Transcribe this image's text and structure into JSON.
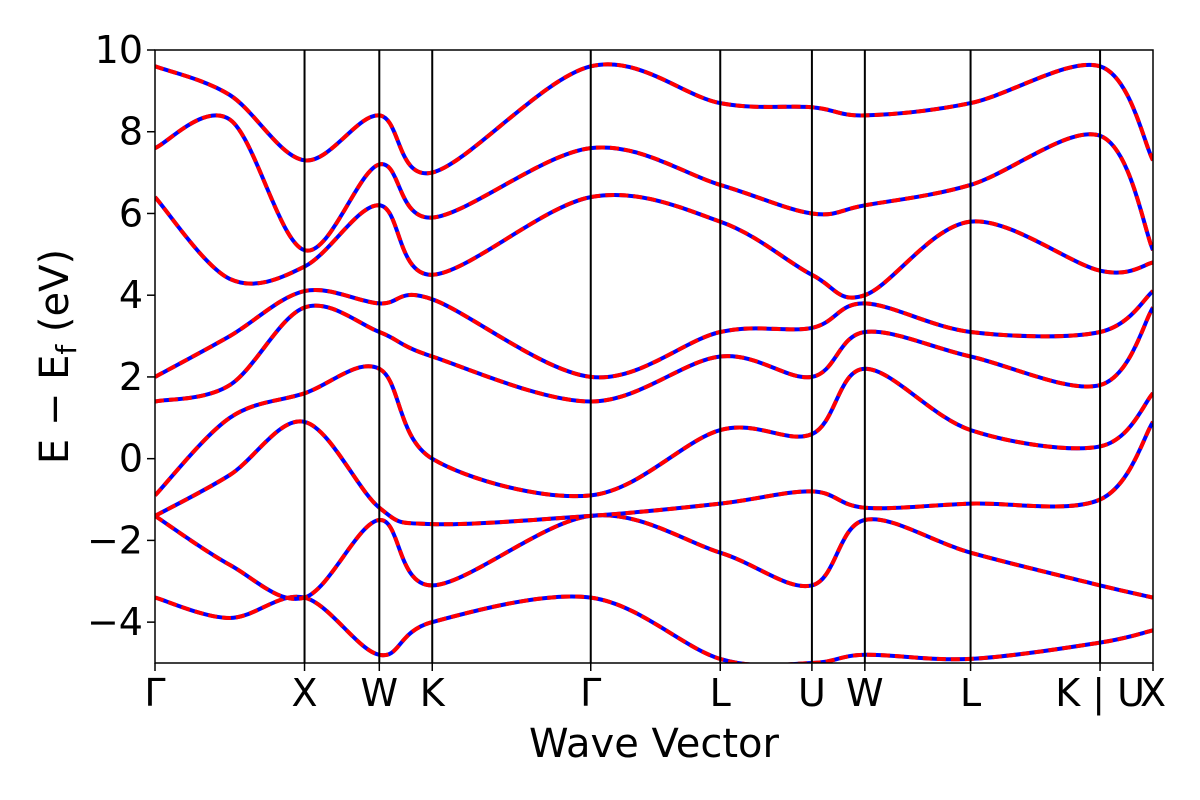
{
  "chart_data": {
    "type": "line",
    "title": "",
    "xlabel": "Wave Vector",
    "ylabel": "E − E",
    "ylabel_subscript": "f",
    "ylabel_unit": "(eV)",
    "ylim": [
      -5,
      10
    ],
    "yticks": [
      10,
      8,
      6,
      4,
      2,
      0,
      -2,
      -4
    ],
    "ytick_labels": [
      "10",
      "8",
      "6",
      "4",
      "2",
      "0",
      "−2",
      "−4"
    ],
    "kpoints": [
      {
        "label": "Γ",
        "k": 0.0
      },
      {
        "label": "X",
        "k": 1.0
      },
      {
        "label": "W",
        "k": 1.5
      },
      {
        "label": "K",
        "k": 1.854
      },
      {
        "label": "Γ",
        "k": 2.914
      },
      {
        "label": "L",
        "k": 3.78
      },
      {
        "label": "U",
        "k": 4.393
      },
      {
        "label": "W",
        "k": 4.747
      },
      {
        "label": "L",
        "k": 5.454
      },
      {
        "label": "K | U",
        "k": 6.32
      },
      {
        "label": "X",
        "k": 6.674
      }
    ],
    "grid": false,
    "series_colors": {
      "reference": "#0000ff",
      "fit": "#ff0000"
    },
    "series": [
      {
        "name": "",
        "style": "blue solid",
        "bands": [
          [
            [
              0,
              -3.4
            ],
            [
              0.5,
              -3.9
            ],
            [
              1.0,
              -3.4
            ],
            [
              1.5,
              -4.8
            ],
            [
              1.854,
              -4.0
            ],
            [
              2.914,
              -3.4
            ],
            [
              3.78,
              -4.9
            ],
            [
              4.393,
              -5.0
            ],
            [
              4.747,
              -4.8
            ],
            [
              5.454,
              -4.9
            ],
            [
              6.32,
              -4.5
            ],
            [
              6.674,
              -4.2
            ]
          ],
          [
            [
              0,
              -1.4
            ],
            [
              0.5,
              -2.6
            ],
            [
              1.0,
              -3.4
            ],
            [
              1.5,
              -1.5
            ],
            [
              1.854,
              -3.1
            ],
            [
              2.914,
              -1.4
            ],
            [
              3.78,
              -2.3
            ],
            [
              4.393,
              -3.1
            ],
            [
              4.747,
              -1.5
            ],
            [
              5.454,
              -2.3
            ],
            [
              6.32,
              -3.1
            ],
            [
              6.674,
              -3.4
            ]
          ],
          [
            [
              0,
              -1.4
            ],
            [
              0.5,
              -0.4
            ],
            [
              1.0,
              0.9
            ],
            [
              1.5,
              -1.2
            ],
            [
              1.854,
              -1.6
            ],
            [
              2.914,
              -1.4
            ],
            [
              3.78,
              -1.1
            ],
            [
              4.393,
              -0.8
            ],
            [
              4.747,
              -1.2
            ],
            [
              5.454,
              -1.1
            ],
            [
              6.32,
              -1.0
            ],
            [
              6.674,
              0.9
            ]
          ],
          [
            [
              0,
              -0.9
            ],
            [
              0.5,
              1.0
            ],
            [
              1.0,
              1.6
            ],
            [
              1.5,
              2.2
            ],
            [
              1.854,
              0.0
            ],
            [
              2.914,
              -0.9
            ],
            [
              3.78,
              0.7
            ],
            [
              4.393,
              0.6
            ],
            [
              4.747,
              2.2
            ],
            [
              5.454,
              0.7
            ],
            [
              6.32,
              0.3
            ],
            [
              6.674,
              1.6
            ]
          ],
          [
            [
              0,
              1.4
            ],
            [
              0.5,
              1.8
            ],
            [
              1.0,
              3.7
            ],
            [
              1.5,
              3.1
            ],
            [
              1.854,
              2.5
            ],
            [
              2.914,
              1.4
            ],
            [
              3.78,
              2.5
            ],
            [
              4.393,
              2.0
            ],
            [
              4.747,
              3.1
            ],
            [
              5.454,
              2.5
            ],
            [
              6.32,
              1.8
            ],
            [
              6.674,
              3.7
            ]
          ],
          [
            [
              0,
              2.0
            ],
            [
              0.5,
              3.0
            ],
            [
              1.0,
              4.1
            ],
            [
              1.5,
              3.8
            ],
            [
              1.854,
              3.9
            ],
            [
              2.914,
              2.0
            ],
            [
              3.78,
              3.1
            ],
            [
              4.393,
              3.2
            ],
            [
              4.747,
              3.8
            ],
            [
              5.454,
              3.1
            ],
            [
              6.32,
              3.1
            ],
            [
              6.674,
              4.1
            ]
          ],
          [
            [
              0,
              6.4
            ],
            [
              0.5,
              4.4
            ],
            [
              1.0,
              4.7
            ],
            [
              1.5,
              6.2
            ],
            [
              1.854,
              4.5
            ],
            [
              2.914,
              6.4
            ],
            [
              3.78,
              5.8
            ],
            [
              4.393,
              4.5
            ],
            [
              4.747,
              4.0
            ],
            [
              5.454,
              5.8
            ],
            [
              6.32,
              4.6
            ],
            [
              6.674,
              4.8
            ]
          ],
          [
            [
              0,
              7.6
            ],
            [
              0.5,
              8.3
            ],
            [
              1.0,
              5.1
            ],
            [
              1.5,
              7.2
            ],
            [
              1.854,
              5.9
            ],
            [
              2.914,
              7.6
            ],
            [
              3.78,
              6.7
            ],
            [
              4.393,
              6.0
            ],
            [
              4.747,
              6.2
            ],
            [
              5.454,
              6.7
            ],
            [
              6.32,
              7.9
            ],
            [
              6.674,
              5.1
            ]
          ],
          [
            [
              0,
              9.6
            ],
            [
              0.5,
              8.9
            ],
            [
              1.0,
              7.3
            ],
            [
              1.5,
              8.4
            ],
            [
              1.854,
              7.0
            ],
            [
              2.914,
              9.6
            ],
            [
              3.78,
              8.7
            ],
            [
              4.393,
              8.6
            ],
            [
              4.747,
              8.4
            ],
            [
              5.454,
              8.7
            ],
            [
              6.32,
              9.6
            ],
            [
              6.674,
              7.3
            ]
          ]
        ]
      },
      {
        "name": "",
        "style": "red dashed",
        "bands": "same as reference"
      }
    ]
  }
}
